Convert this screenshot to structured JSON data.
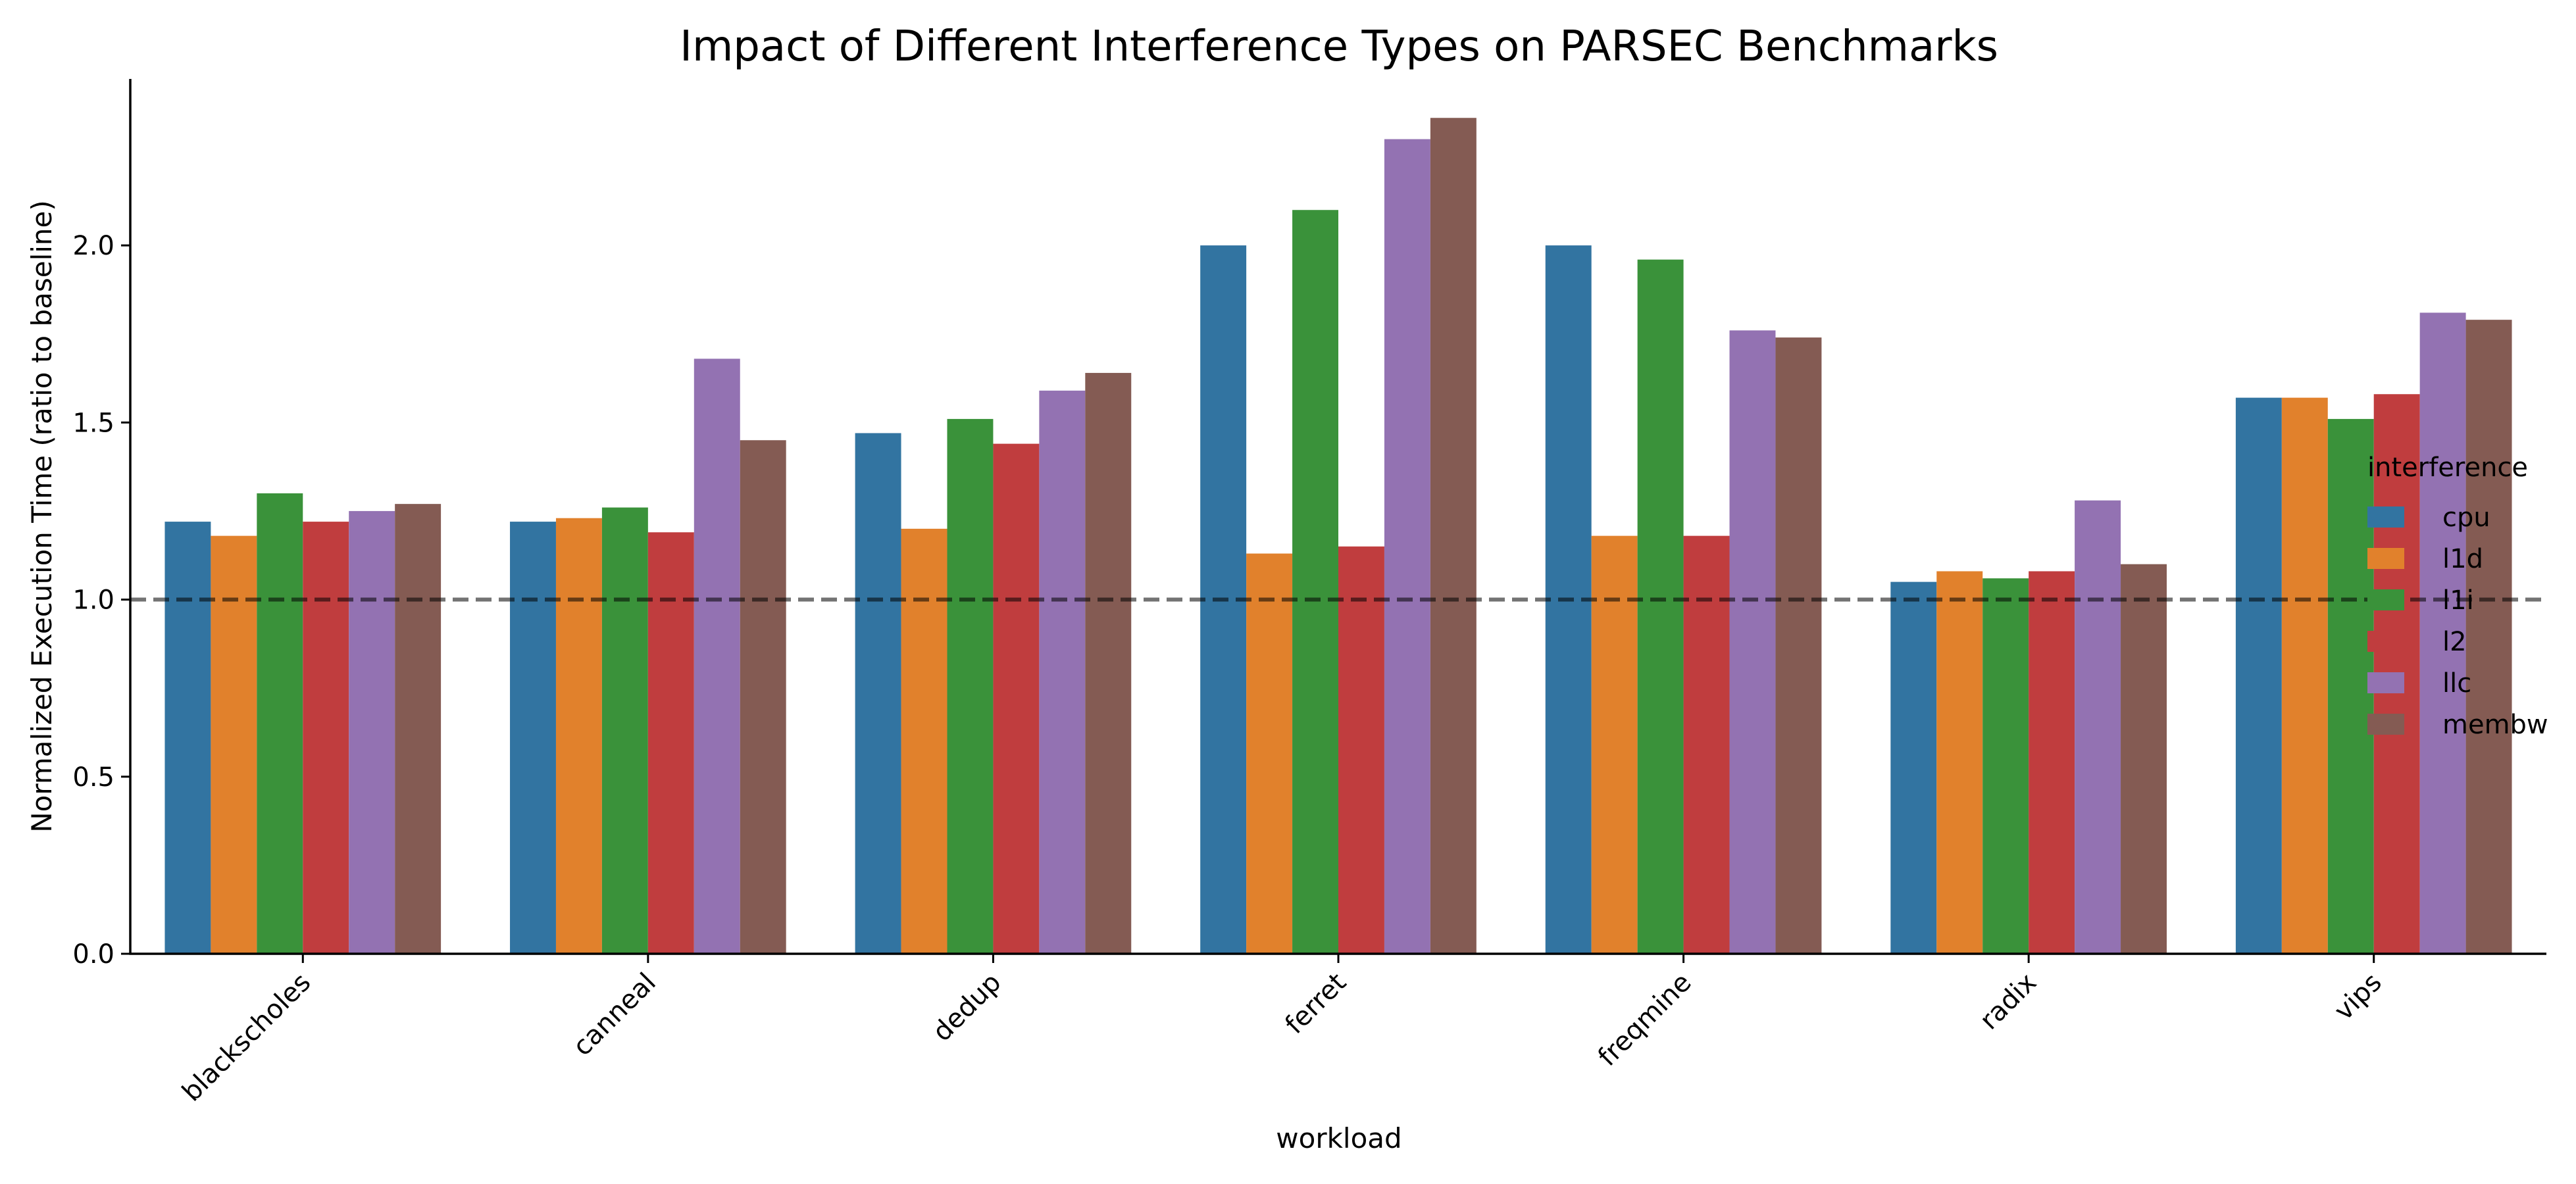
{
  "chart_data": {
    "type": "bar",
    "title": "Impact of Different Interference Types on PARSEC Benchmarks",
    "xlabel": "workload",
    "ylabel": "Normalized Execution Time (ratio to baseline)",
    "categories": [
      "blackscholes",
      "canneal",
      "dedup",
      "ferret",
      "freqmine",
      "radix",
      "vips"
    ],
    "ylim": [
      0,
      2.47
    ],
    "yticks": [
      "0.0",
      "0.5",
      "1.0",
      "1.5",
      "2.0"
    ],
    "reference_line": {
      "y": 1.0,
      "style": "dashed"
    },
    "legend": {
      "title": "interference",
      "placement": "center-right"
    },
    "grid": false,
    "series": [
      {
        "name": "cpu",
        "color": "#3274a1",
        "values": [
          1.22,
          1.22,
          1.47,
          2.0,
          2.0,
          1.05,
          1.57
        ]
      },
      {
        "name": "l1d",
        "color": "#e1812c",
        "values": [
          1.18,
          1.23,
          1.2,
          1.13,
          1.18,
          1.08,
          1.57
        ]
      },
      {
        "name": "l1i",
        "color": "#3a923a",
        "values": [
          1.3,
          1.26,
          1.51,
          2.1,
          1.96,
          1.06,
          1.51
        ]
      },
      {
        "name": "l2",
        "color": "#c03d3e",
        "values": [
          1.22,
          1.19,
          1.44,
          1.15,
          1.18,
          1.08,
          1.58
        ]
      },
      {
        "name": "llc",
        "color": "#9372b2",
        "values": [
          1.25,
          1.68,
          1.59,
          2.3,
          1.76,
          1.28,
          1.81
        ]
      },
      {
        "name": "membw",
        "color": "#845b53",
        "values": [
          1.27,
          1.45,
          1.64,
          2.36,
          1.74,
          1.1,
          1.79
        ]
      }
    ]
  }
}
